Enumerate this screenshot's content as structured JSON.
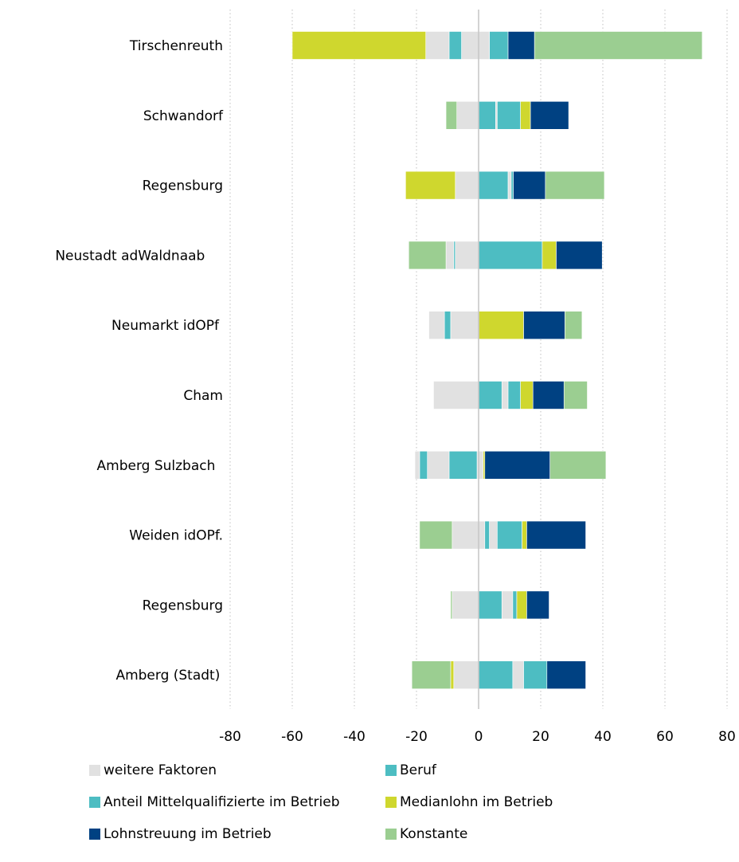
{
  "chart_data": {
    "type": "bar",
    "orientation": "horizontal",
    "stacked": true,
    "categories": [
      "Tirschenreuth",
      "Schwandorf",
      "Regensburg",
      "Neustadt adWaldnaab",
      "Neumarkt idOPf",
      "Cham",
      "Amberg Sulzbach",
      "Weiden idOPf.",
      "Regensburg",
      "Amberg (Stadt)"
    ],
    "xlim": [
      -80,
      80
    ],
    "xticks": [
      -80,
      -60,
      -40,
      -20,
      0,
      20,
      40,
      60,
      80
    ],
    "grid": "vertical dotted",
    "legend_position": "bottom",
    "colors": {
      "weitere Faktoren": "#e1e1e1",
      "Beruf": "#4dbdc2",
      "Anteil Mittelqualifizierte im Betrieb": "#4dbdc2",
      "Medianlohn im Betrieb": "#cfd72e",
      "Lohnstreuung im Betrieb": "#004182",
      "Konstante": "#9bce91"
    },
    "series": [
      {
        "name": "weitere Faktoren",
        "color": "#e1e1e1"
      },
      {
        "name": "Beruf",
        "color": "#4dbdc2"
      },
      {
        "name": "Anteil Mittelqualifizierte im Betrieb",
        "color": "#4dbdc2"
      },
      {
        "name": "Medianlohn im Betrieb",
        "color": "#cfd72e"
      },
      {
        "name": "Lohnstreuung im Betrieb",
        "color": "#004182"
      },
      {
        "name": "Konstante",
        "color": "#9bce91"
      }
    ],
    "stacks": [
      {
        "category": "Tirschenreuth",
        "negative": [
          {
            "series": "weitere Faktoren",
            "value": -5.5
          },
          {
            "series": "Beruf",
            "value": -4
          },
          {
            "series": "weitere Faktoren",
            "value": -7.5
          },
          {
            "series": "Medianlohn im Betrieb",
            "value": -43
          }
        ],
        "positive": [
          {
            "series": "weitere Faktoren",
            "value": 3.5
          },
          {
            "series": "Beruf",
            "value": 6
          },
          {
            "series": "Lohnstreuung im Betrieb",
            "value": 8.5
          },
          {
            "series": "Konstante",
            "value": 54
          }
        ]
      },
      {
        "category": "Schwandorf",
        "negative": [
          {
            "series": "weitere Faktoren",
            "value": -7
          },
          {
            "series": "Konstante",
            "value": -3.5
          }
        ],
        "positive": [
          {
            "series": "Beruf",
            "value": 5.5
          },
          {
            "series": "weitere Faktoren",
            "value": 0.5
          },
          {
            "series": "Anteil Mittelqualifizierte im Betrieb",
            "value": 7.5
          },
          {
            "series": "Medianlohn im Betrieb",
            "value": 3.2
          },
          {
            "series": "Lohnstreuung im Betrieb",
            "value": 12.3
          }
        ]
      },
      {
        "category": "Regensburg",
        "negative": [
          {
            "series": "weitere Faktoren",
            "value": -7.5
          },
          {
            "series": "Medianlohn im Betrieb",
            "value": -16
          }
        ],
        "positive": [
          {
            "series": "Beruf",
            "value": 9.5
          },
          {
            "series": "weitere Faktoren",
            "value": 1
          },
          {
            "series": "Anteil Mittelqualifizierte im Betrieb",
            "value": 0.7
          },
          {
            "series": "Lohnstreuung im Betrieb",
            "value": 10.3
          },
          {
            "series": "Konstante",
            "value": 19
          }
        ]
      },
      {
        "category": "Neustadt adWaldnaab",
        "negative": [
          {
            "series": "weitere Faktoren",
            "value": -7.5
          },
          {
            "series": "Beruf",
            "value": -0.5
          },
          {
            "series": "weitere Faktoren",
            "value": -2.5
          },
          {
            "series": "Konstante",
            "value": -12
          }
        ],
        "positive": [
          {
            "series": "Anteil Mittelqualifizierte im Betrieb",
            "value": 20.5
          },
          {
            "series": "Medianlohn im Betrieb",
            "value": 4.5
          },
          {
            "series": "Lohnstreuung im Betrieb",
            "value": 14.8
          }
        ]
      },
      {
        "category": "Neumarkt idOPf",
        "negative": [
          {
            "series": "weitere Faktoren",
            "value": -9
          },
          {
            "series": "Beruf",
            "value": -2
          },
          {
            "series": "weitere Faktoren",
            "value": -5
          }
        ],
        "positive": [
          {
            "series": "Medianlohn im Betrieb",
            "value": 14.5
          },
          {
            "series": "Lohnstreuung im Betrieb",
            "value": 13.3
          },
          {
            "series": "Konstante",
            "value": 5.5
          }
        ]
      },
      {
        "category": "Cham",
        "negative": [
          {
            "series": "weitere Faktoren",
            "value": -14.5
          }
        ],
        "positive": [
          {
            "series": "Beruf",
            "value": 7.5
          },
          {
            "series": "weitere Faktoren",
            "value": 2
          },
          {
            "series": "Anteil Mittelqualifizierte im Betrieb",
            "value": 4
          },
          {
            "series": "Medianlohn im Betrieb",
            "value": 4
          },
          {
            "series": "Lohnstreuung im Betrieb",
            "value": 10
          },
          {
            "series": "Konstante",
            "value": 7.5
          }
        ]
      },
      {
        "category": "Amberg Sulzbach",
        "negative": [
          {
            "series": "weitere Faktoren",
            "value": -0.5
          },
          {
            "series": "Anteil Mittelqualifizierte im Betrieb",
            "value": -9
          },
          {
            "series": "weitere Faktoren",
            "value": -7
          },
          {
            "series": "Beruf",
            "value": -2.5
          },
          {
            "series": "weitere Faktoren",
            "value": -1.5
          }
        ],
        "positive": [
          {
            "series": "weitere Faktoren",
            "value": 1.5
          },
          {
            "series": "Medianlohn im Betrieb",
            "value": 0.5
          },
          {
            "series": "Lohnstreuung im Betrieb",
            "value": 21
          },
          {
            "series": "Konstante",
            "value": 18
          }
        ]
      },
      {
        "category": "Weiden idOPf.",
        "negative": [
          {
            "series": "weitere Faktoren",
            "value": -8.5
          },
          {
            "series": "Konstante",
            "value": -10.5
          }
        ],
        "positive": [
          {
            "series": "weitere Faktoren",
            "value": 2
          },
          {
            "series": "Beruf",
            "value": 1.5
          },
          {
            "series": "weitere Faktoren",
            "value": 2.5
          },
          {
            "series": "Anteil Mittelqualifizierte im Betrieb",
            "value": 8
          },
          {
            "series": "Medianlohn im Betrieb",
            "value": 1.5
          },
          {
            "series": "Lohnstreuung im Betrieb",
            "value": 19
          }
        ]
      },
      {
        "category": "Regensburg",
        "negative": [
          {
            "series": "weitere Faktoren",
            "value": -8.5
          },
          {
            "series": "Konstante",
            "value": -0.5
          }
        ],
        "positive": [
          {
            "series": "Beruf",
            "value": 7.5
          },
          {
            "series": "weitere Faktoren",
            "value": 3.5
          },
          {
            "series": "Anteil Mittelqualifizierte im Betrieb",
            "value": 1.3
          },
          {
            "series": "Medianlohn im Betrieb",
            "value": 3.2
          },
          {
            "series": "Lohnstreuung im Betrieb",
            "value": 7.2
          }
        ]
      },
      {
        "category": "Amberg (Stadt)",
        "negative": [
          {
            "series": "weitere Faktoren",
            "value": -8
          },
          {
            "series": "Medianlohn im Betrieb",
            "value": -1
          },
          {
            "series": "Konstante",
            "value": -12.5
          }
        ],
        "positive": [
          {
            "series": "Beruf",
            "value": 11
          },
          {
            "series": "weitere Faktoren",
            "value": 3.5
          },
          {
            "series": "Anteil Mittelqualifizierte im Betrieb",
            "value": 7.5
          },
          {
            "series": "Lohnstreuung im Betrieb",
            "value": 12.5
          }
        ]
      }
    ]
  },
  "legend": [
    {
      "label": "weitere Faktoren",
      "color": "#e1e1e1"
    },
    {
      "label": "Beruf",
      "color": "#4dbdc2"
    },
    {
      "label": "Anteil Mittelqualifizierte im Betrieb",
      "color": "#4dbdc2"
    },
    {
      "label": "Medianlohn im Betrieb",
      "color": "#cfd72e"
    },
    {
      "label": "Lohnstreuung im Betrieb",
      "color": "#004182"
    },
    {
      "label": "Konstante",
      "color": "#9bce91"
    }
  ]
}
